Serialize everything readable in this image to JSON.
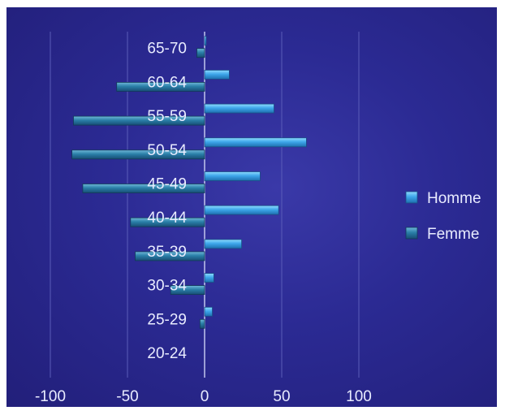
{
  "chart_data": {
    "type": "bar",
    "orientation": "horizontal",
    "categories": [
      "20-24",
      "25-29",
      "30-34",
      "35-39",
      "40-44",
      "45-49",
      "50-54",
      "55-59",
      "60-64",
      "65-70"
    ],
    "series": [
      {
        "name": "Homme",
        "values": [
          0,
          5,
          6,
          24,
          48,
          36,
          66,
          45,
          16,
          1
        ],
        "color": "#3ea6ea"
      },
      {
        "name": "Femme",
        "values": [
          0,
          -3,
          -22,
          -45,
          -48,
          -79,
          -86,
          -85,
          -57,
          -5
        ],
        "color": "#2a7fa8"
      }
    ],
    "xlim": [
      -100,
      100
    ],
    "xticks": [
      -100,
      -50,
      0,
      50,
      100
    ],
    "grid": true,
    "legend_position": "right",
    "background": "#2b2a93",
    "gridline_color": "#5a5cb8",
    "text_color": "#e9ecff"
  }
}
